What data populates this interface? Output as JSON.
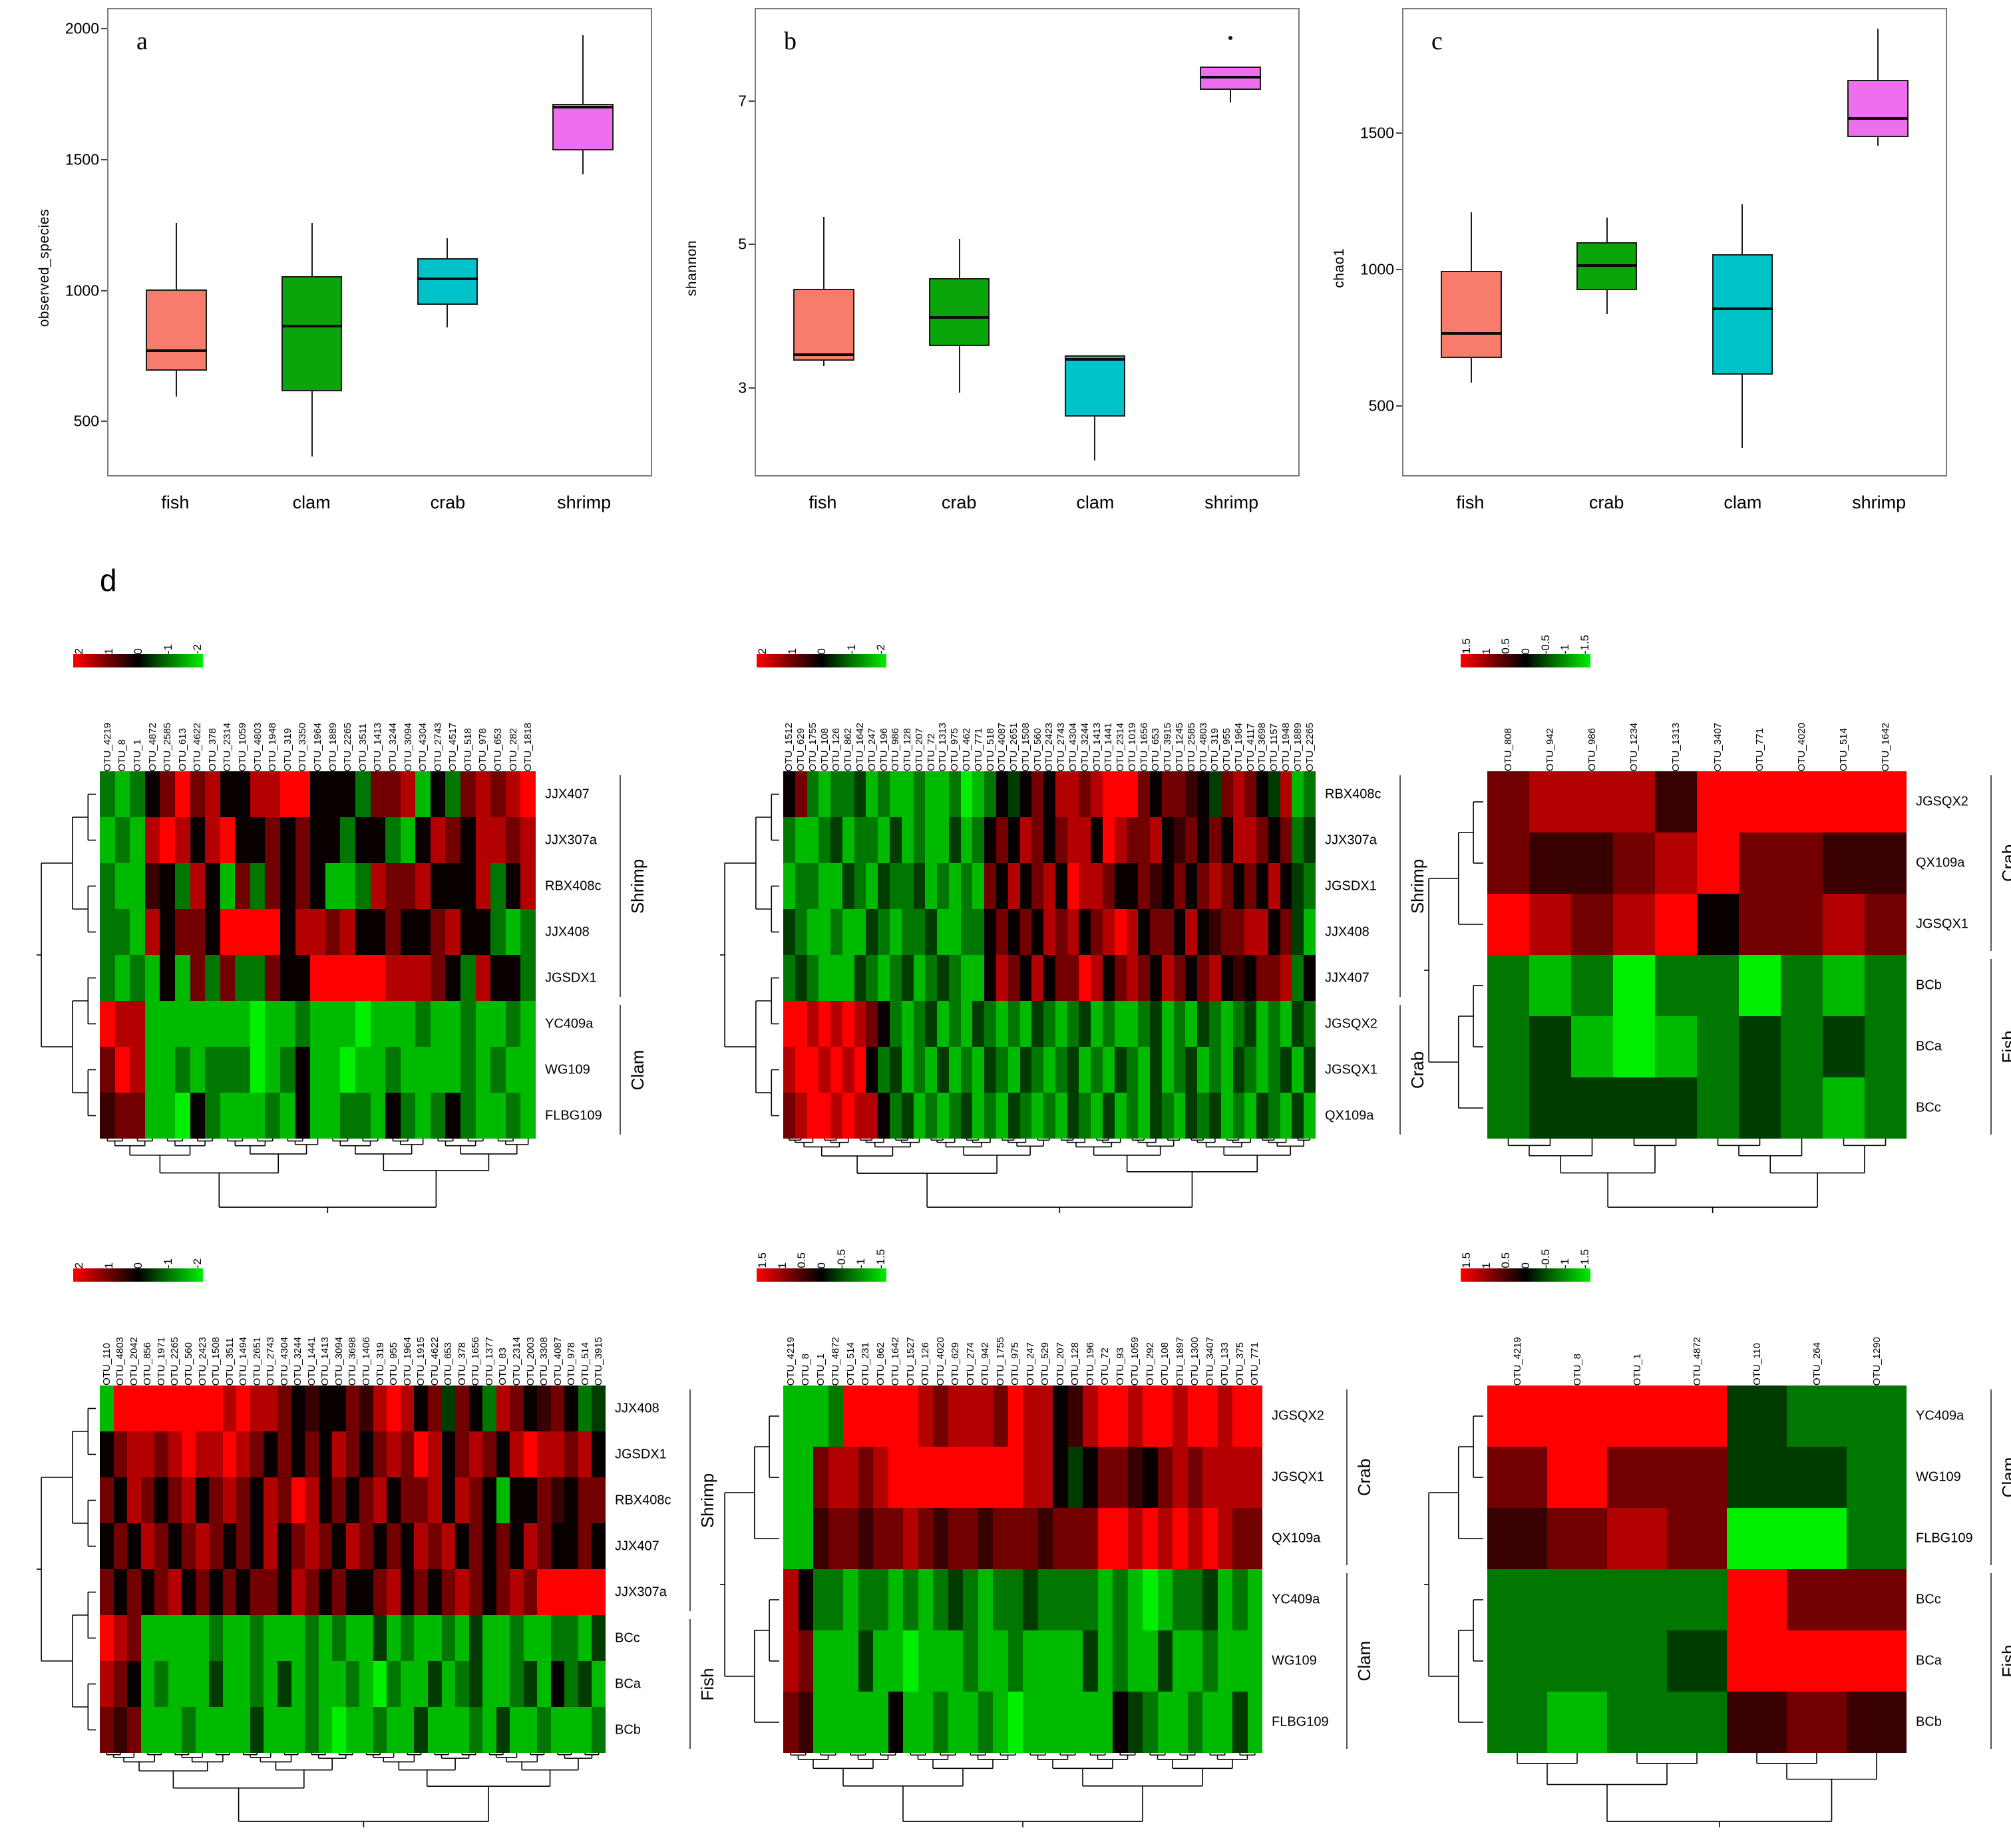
{
  "panel_labels": {
    "a": "a",
    "b": "b",
    "c": "c",
    "d": "d"
  },
  "heatmap_colors": {
    "positive_max": "#ff0000",
    "zero": "#000000",
    "negative_max": "#00ee00"
  },
  "cell_code_values": {
    "comment": "each matrix cell is one code char; value = fraction * scale_max of its heatmap",
    "R": 1.0,
    "r": 0.7,
    "m": 0.45,
    "n": 0.22,
    "k": 0.03,
    "e": -0.25,
    "d": -0.5,
    "g": -0.78,
    "G": -1.0
  },
  "chart_data": [
    {
      "type": "boxplot",
      "panel": "a",
      "ylabel": "observed_species",
      "yticks": [
        2000,
        1500,
        1000,
        500
      ],
      "ylim": [
        300,
        2080
      ],
      "grid": false,
      "categories": [
        "fish",
        "clam",
        "crab",
        "shrimp"
      ],
      "series": [
        {
          "name": "fish",
          "color": "#f87c6c",
          "low": 600,
          "q1": 700,
          "median": 775,
          "q3": 1010,
          "high": 1265,
          "outliers": []
        },
        {
          "name": "clam",
          "color": "#0aa50a",
          "low": 370,
          "q1": 620,
          "median": 870,
          "q3": 1060,
          "high": 1265,
          "outliers": []
        },
        {
          "name": "crab",
          "color": "#00c3c9",
          "low": 865,
          "q1": 950,
          "median": 1050,
          "q3": 1130,
          "high": 1205,
          "outliers": []
        },
        {
          "name": "shrimp",
          "color": "#ee6fee",
          "low": 1450,
          "q1": 1540,
          "median": 1705,
          "q3": 1720,
          "high": 1980,
          "outliers": []
        }
      ]
    },
    {
      "type": "boxplot",
      "panel": "b",
      "ylabel": "shannon",
      "yticks": [
        7,
        5,
        3
      ],
      "ylim": [
        1.8,
        8.3
      ],
      "grid": false,
      "categories": [
        "fish",
        "crab",
        "clam",
        "shrimp"
      ],
      "series": [
        {
          "name": "fish",
          "color": "#f87c6c",
          "low": 3.32,
          "q1": 3.4,
          "median": 3.48,
          "q3": 4.4,
          "high": 5.4,
          "outliers": []
        },
        {
          "name": "crab",
          "color": "#0aa50a",
          "low": 2.95,
          "q1": 3.6,
          "median": 4.0,
          "q3": 4.55,
          "high": 5.1,
          "outliers": []
        },
        {
          "name": "clam",
          "color": "#00c3c9",
          "low": 2.0,
          "q1": 2.62,
          "median": 3.42,
          "q3": 3.47,
          "high": 3.47,
          "outliers": []
        },
        {
          "name": "shrimp",
          "color": "#ee6fee",
          "low": 7.0,
          "q1": 7.18,
          "median": 7.35,
          "q3": 7.5,
          "high": 7.5,
          "outliers": [
            7.9
          ]
        }
      ]
    },
    {
      "type": "boxplot",
      "panel": "c",
      "ylabel": "chao1",
      "yticks": [
        1500,
        1000,
        500
      ],
      "ylim": [
        250,
        1960
      ],
      "grid": false,
      "categories": [
        "fish",
        "crab",
        "clam",
        "shrimp"
      ],
      "series": [
        {
          "name": "fish",
          "color": "#f87c6c",
          "low": 590,
          "q1": 680,
          "median": 770,
          "q3": 1000,
          "high": 1215,
          "outliers": []
        },
        {
          "name": "crab",
          "color": "#0aa50a",
          "low": 840,
          "q1": 930,
          "median": 1020,
          "q3": 1105,
          "high": 1195,
          "outliers": []
        },
        {
          "name": "clam",
          "color": "#00c3c9",
          "low": 350,
          "q1": 620,
          "median": 860,
          "q3": 1060,
          "high": 1245,
          "outliers": []
        },
        {
          "name": "shrimp",
          "color": "#ee6fee",
          "low": 1460,
          "q1": 1490,
          "median": 1560,
          "q3": 1700,
          "high": 1890,
          "outliers": []
        }
      ]
    },
    {
      "type": "heatmap",
      "panel": "d1",
      "scale_max": 2,
      "scale_ticks": [
        "2",
        "1",
        "0",
        "-1",
        "-2"
      ],
      "columns": [
        "OTU_4219",
        "OTU_8",
        "OTU_1",
        "OTU_4872",
        "OTU_2585",
        "OTU_613",
        "OTU_4622",
        "OTU_378",
        "OTU_2314",
        "OTU_1059",
        "OTU_4803",
        "OTU_1948",
        "OTU_319",
        "OTU_3350",
        "OTU_1964",
        "OTU_1889",
        "OTU_2265",
        "OTU_3511",
        "OTU_1413",
        "OTU_3244",
        "OTU_3094",
        "OTU_4304",
        "OTU_2743",
        "OTU_4517",
        "OTU_518",
        "OTU_978",
        "OTU_653",
        "OTU_282",
        "OTU_1818"
      ],
      "rows": [
        "JJX407",
        "JJX307a",
        "RBX408c",
        "JJX408",
        "JGSDX1",
        "YC409a",
        "WG109",
        "FLBG109"
      ],
      "row_groups": [
        {
          "label": "Shrimp",
          "from": 0,
          "to": 4
        },
        {
          "label": "Clam",
          "from": 5,
          "to": 7
        }
      ],
      "matrix": [
        "dgdkmRmrkkrrRRkkkdmmrgkdmrmrR",
        "gdgrRrkrRkkmkmkkdkkdgkrmkrrmr",
        "dggnkdrkgmdmkmkggdrmmrkkkrdkr",
        "ddgrkmmkRRRRkrrmrkkmkkmrkkdgd",
        "dgdgkgmdmddmkkRRRRRrrrmkdrkkd",
        "RrrgggggggGggdgggGgggdggdggdg",
        "mRrggdgdddGgdkggGggdggggdgdgg",
        "nmmggGkdgggdgkggddgkdgdkdggdg"
      ]
    },
    {
      "type": "heatmap",
      "panel": "d2",
      "scale_max": 2,
      "scale_ticks": [
        "2",
        "1",
        "0",
        "-1",
        "-2"
      ],
      "columns": [
        "OTU_1512",
        "OTU_629",
        "OTU_1755",
        "OTU_108",
        "OTU_126",
        "OTU_862",
        "OTU_1642",
        "OTU_247",
        "OTU_196",
        "OTU_986",
        "OTU_128",
        "OTU_207",
        "OTU_72",
        "OTU_1313",
        "OTU_975",
        "OTU_462",
        "OTU_771",
        "OTU_518",
        "OTU_4087",
        "OTU_2651",
        "OTU_1508",
        "OTU_560",
        "OTU_2423",
        "OTU_2743",
        "OTU_4304",
        "OTU_3244",
        "OTU_1413",
        "OTU_1441",
        "OTU_2314",
        "OTU_1019",
        "OTU_1656",
        "OTU_653",
        "OTU_3915",
        "OTU_1245",
        "OTU_2585",
        "OTU_4803",
        "OTU_319",
        "OTU_955",
        "OTU_1964",
        "OTU_4117",
        "OTU_3698",
        "OTU_1157",
        "OTU_1948",
        "OTU_1889",
        "OTU_2265"
      ],
      "rows": [
        "RBX408c",
        "JJX307a",
        "JGSDX1",
        "JJX408",
        "JJX407",
        "JGSQX2",
        "JGSQX1",
        "QX109a"
      ],
      "row_groups": [
        {
          "label": "Shrimp",
          "from": 0,
          "to": 4
        },
        {
          "label": "Crab",
          "from": 5,
          "to": 7
        }
      ],
      "matrix": [
        "kmdgddegdggdggdGgdkekmkrrmrRRRmkmmnkemrmkergd",
        "dggdegddgegdggegdkmkrmkmrrkRrmmrknmkmkrrmkmde",
        "gddggedgeddegdgdgmkrkmrkRrrmkkmnkmkmrmkmkrked",
        "edggdggedgddeggddkmkmkrmrkmrRrkmmkrknmmrrkmeg",
        "dedgggedgdegdedggkrmkrkmmRrkmrmkrmkmrknkmmrdk",
        "RRrRrRrmkdgdegdgedgdgedgdegdggdegdgedgdegdged",
        "rRRrRrRkdegdgegdgedgedgdegdgedgegdegdgedgdege",
        "mrRRrRrrkdegdgdegdgedgdgedgegdgedgedegdgedgeg"
      ]
    },
    {
      "type": "heatmap",
      "panel": "d3",
      "scale_max": 1.5,
      "scale_ticks": [
        "1.5",
        "1",
        "0.5",
        "0",
        "-0.5",
        "-1",
        "-1.5"
      ],
      "columns": [
        "OTU_808",
        "OTU_942",
        "OTU_986",
        "OTU_1234",
        "OTU_1313",
        "OTU_3407",
        "OTU_771",
        "OTU_4020",
        "OTU_514",
        "OTU_1642"
      ],
      "rows": [
        "JGSQX2",
        "QX109a",
        "JGSQX1",
        "BCb",
        "BCa",
        "BCc"
      ],
      "row_groups": [
        {
          "label": "Crab",
          "from": 0,
          "to": 2
        },
        {
          "label": "Fish",
          "from": 3,
          "to": 5
        }
      ],
      "matrix": [
        "mrrrnRRRRR",
        "mnnmrRmmnn",
        "RrmrRkmmrm",
        "dgdGddGdgd",
        "degGgdeded",
        "deeeededgd"
      ]
    },
    {
      "type": "heatmap",
      "panel": "d4",
      "scale_max": 2,
      "scale_ticks": [
        "2",
        "1",
        "0",
        "-1",
        "-2"
      ],
      "columns": [
        "OTU_110",
        "OTU_4803",
        "OTU_2042",
        "OTU_856",
        "OTU_1971",
        "OTU_2265",
        "OTU_560",
        "OTU_2423",
        "OTU_1508",
        "OTU_3511",
        "OTU_1494",
        "OTU_2651",
        "OTU_2743",
        "OTU_4304",
        "OTU_3244",
        "OTU_1441",
        "OTU_1413",
        "OTU_3094",
        "OTU_3698",
        "OTU_1406",
        "OTU_319",
        "OTU_955",
        "OTU_1964",
        "OTU_1915",
        "OTU_4622",
        "OTU_653",
        "OTU_378",
        "OTU_1656",
        "OTU_1377",
        "OTU_83",
        "OTU_2314",
        "OTU_2003",
        "OTU_3308",
        "OTU_4087",
        "OTU_978",
        "OTU_514",
        "OTU_3915"
      ],
      "rows": [
        "JJX408",
        "JGSDX1",
        "RBX408c",
        "JJX407",
        "JJX307a",
        "BCc",
        "BCa",
        "BCb"
      ],
      "row_groups": [
        {
          "label": "Shrimp",
          "from": 0,
          "to": 4
        },
        {
          "label": "Fish",
          "from": 5,
          "to": 7
        }
      ],
      "matrix": [
        "gRRRRRRRRrRrrmknkkmnrRrkmemkdrmknmkde",
        "kmrrmrRrrRrmkmkmkrmkmrmRrkmrmkrRrrmrk",
        "mkrmkmrkmrmkrmRrkmkmrkmmrkrmkgkkmnkmm",
        "kmkrmkmrmkmkrkmrmkrmkmkrmrkmkmkrmkkmk",
        "mkmkmrkmkmkmmkrmkmkkmrkmkmrmkmrmRRRRR",
        "Rrmgggggdggdgggdgdggegdggdgeggdggddge",
        "rmkgdgggeggdgegdggdgGdggegdeggdegkdeg",
        "mnmgggdggggegggdgGggdggegggdgeggdgggd"
      ]
    },
    {
      "type": "heatmap",
      "panel": "d5",
      "scale_max": 1.5,
      "scale_ticks": [
        "1.5",
        "1",
        "0.5",
        "0",
        "-0.5",
        "-1",
        "-1.5"
      ],
      "columns": [
        "OTU_4219",
        "OTU_8",
        "OTU_1",
        "OTU_4872",
        "OTU_514",
        "OTU_231",
        "OTU_862",
        "OTU_1642",
        "OTU_1527",
        "OTU_126",
        "OTU_4020",
        "OTU_629",
        "OTU_274",
        "OTU_942",
        "OTU_1755",
        "OTU_975",
        "OTU_247",
        "OTU_529",
        "OTU_207",
        "OTU_128",
        "OTU_196",
        "OTU_72",
        "OTU_93",
        "OTU_1059",
        "OTU_292",
        "OTU_108",
        "OTU_1897",
        "OTU_1300",
        "OTU_3407",
        "OTU_133",
        "OTU_375",
        "OTU_771"
      ],
      "rows": [
        "JGSQX2",
        "JGSQX1",
        "QX109a",
        "YC409a",
        "WG109",
        "FLBG109"
      ],
      "row_groups": [
        {
          "label": "Crab",
          "from": 0,
          "to": 2
        },
        {
          "label": "Clam",
          "from": 3,
          "to": 5
        }
      ],
      "matrix": [
        "gggdRRRRRrmrrrmRrrknrRRrRRrRRrRR",
        "ggmrrmrRRRRRRRRRrrkekmmnkmrmrrrr",
        "ggnmmnmmrmnmmnmmmnmmmRRrRrRrRrmm",
        "rkddgddgdgdedgddeddddgdgGgddegdg",
        "rmgggeggGgggdggdggggegdggeggdggg",
        "mngggggkggdggdgGggggggkedggdggeg"
      ]
    },
    {
      "type": "heatmap",
      "panel": "d6",
      "scale_max": 1.5,
      "scale_ticks": [
        "1.5",
        "1",
        "0.5",
        "0",
        "-0.5",
        "-1",
        "-1.5"
      ],
      "columns": [
        "OTU_4219",
        "OTU_8",
        "OTU_1",
        "OTU_4872",
        "OTU_110",
        "OTU_264",
        "OTU_1290"
      ],
      "rows": [
        "YC409a",
        "WG109",
        "FLBG109",
        "BCc",
        "BCa",
        "BCb"
      ],
      "row_groups": [
        {
          "label": "Clam",
          "from": 0,
          "to": 2
        },
        {
          "label": "Fish",
          "from": 3,
          "to": 5
        }
      ],
      "matrix": [
        "RRRRedd",
        "mRmmeed",
        "nmrmGGd",
        "ddddRmm",
        "dddeRRR",
        "dgddnmn"
      ]
    }
  ]
}
